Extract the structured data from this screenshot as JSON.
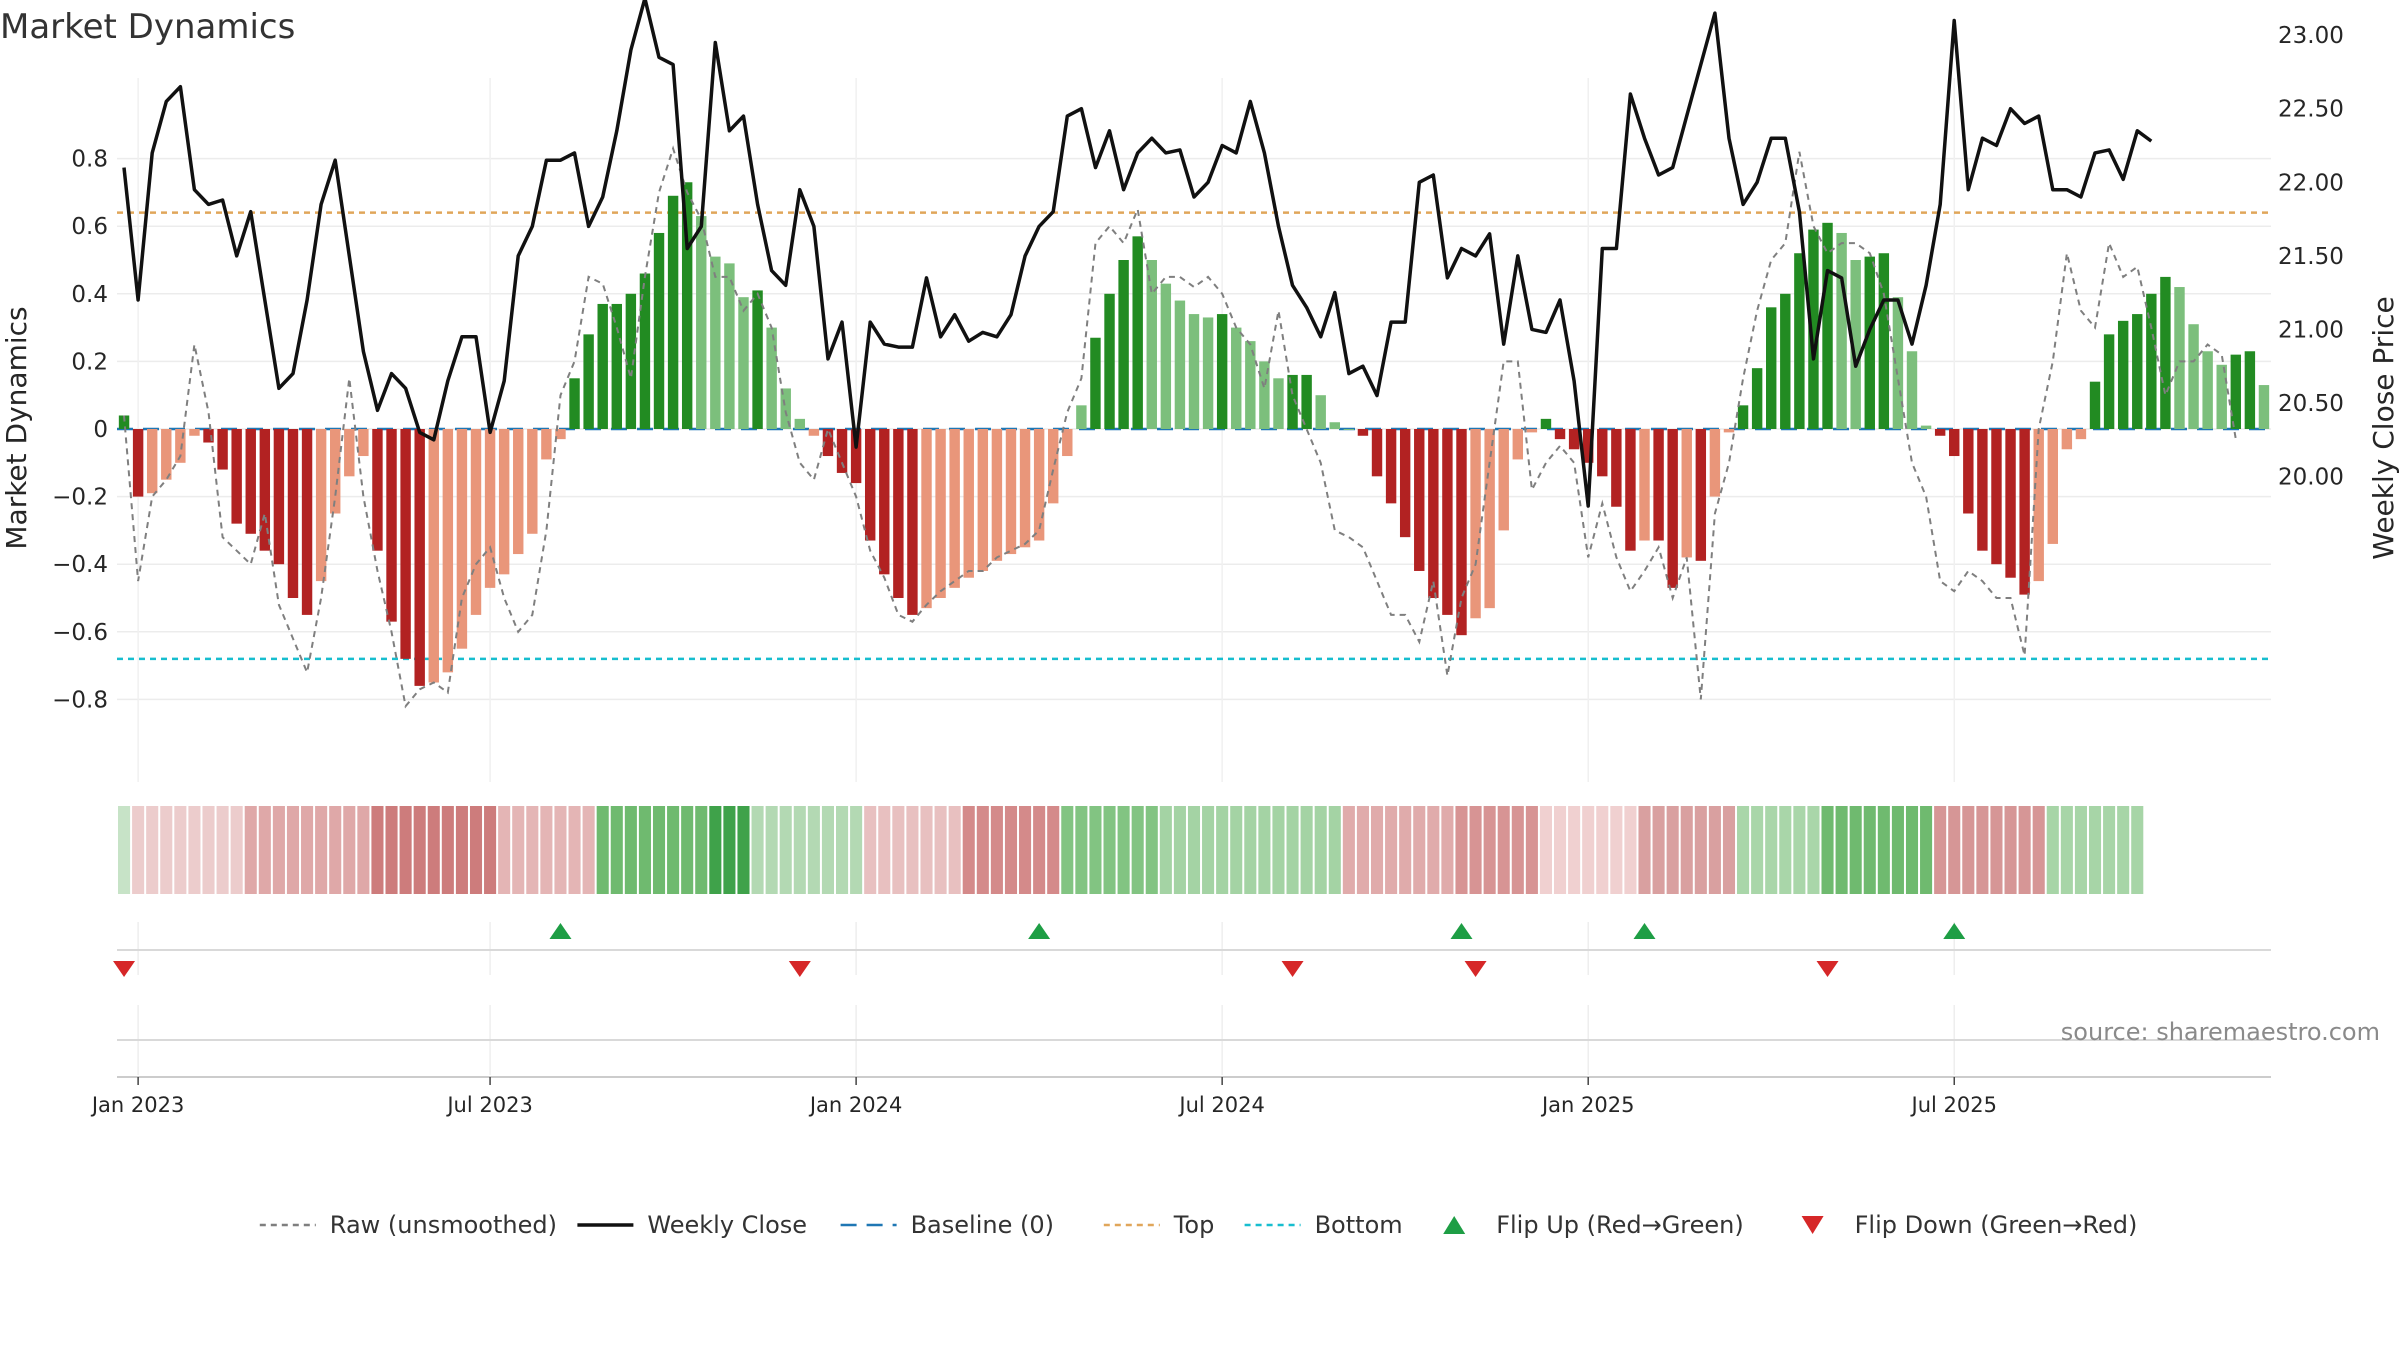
{
  "chart_data": {
    "type": "bar",
    "title": "Market Dynamics",
    "ylabel_left": "Market Dynamics",
    "ylabel_right": "Weekly Close Price",
    "source": "source: sharemaestro.com",
    "ylim_left": [
      -0.82,
      0.82
    ],
    "ylim_right": [
      19.75,
      23.3
    ],
    "yticks_left": [
      {
        "value": 0.8,
        "label": "0.8"
      },
      {
        "value": 0.6,
        "label": "0.6"
      },
      {
        "value": 0.4,
        "label": "0.4"
      },
      {
        "value": 0.2,
        "label": "0.2"
      },
      {
        "value": 0,
        "label": "0"
      },
      {
        "value": -0.2,
        "label": "−0.2"
      },
      {
        "value": -0.4,
        "label": "−0.4"
      },
      {
        "value": -0.6,
        "label": "−0.6"
      },
      {
        "value": -0.8,
        "label": "−0.8"
      }
    ],
    "yticks_right": [
      {
        "value": 23.0,
        "label": "23.00"
      },
      {
        "value": 22.5,
        "label": "22.50"
      },
      {
        "value": 22.0,
        "label": "22.00"
      },
      {
        "value": 21.5,
        "label": "21.50"
      },
      {
        "value": 21.0,
        "label": "21.00"
      },
      {
        "value": 20.5,
        "label": "20.50"
      },
      {
        "value": 20.0,
        "label": "20.00"
      }
    ],
    "xticks": [
      {
        "week": 1,
        "label": "Jan 2023"
      },
      {
        "week": 26,
        "label": "Jul 2023"
      },
      {
        "week": 52,
        "label": "Jan 2024"
      },
      {
        "week": 78,
        "label": "Jul 2024"
      },
      {
        "week": 104,
        "label": "Jan 2025"
      },
      {
        "week": 130,
        "label": "Jul 2025"
      }
    ],
    "top_line": 0.64,
    "bottom_line": -0.68,
    "smoothed": [
      0.04,
      -0.2,
      -0.19,
      -0.15,
      -0.1,
      -0.02,
      -0.04,
      -0.12,
      -0.28,
      -0.31,
      -0.36,
      -0.4,
      -0.5,
      -0.55,
      -0.45,
      -0.25,
      -0.14,
      -0.08,
      -0.36,
      -0.57,
      -0.68,
      -0.76,
      -0.75,
      -0.72,
      -0.65,
      -0.55,
      -0.47,
      -0.43,
      -0.37,
      -0.31,
      -0.09,
      -0.03,
      0.15,
      0.28,
      0.37,
      0.37,
      0.4,
      0.46,
      0.58,
      0.69,
      0.73,
      0.63,
      0.51,
      0.49,
      0.39,
      0.41,
      0.3,
      0.12,
      0.03,
      -0.02,
      -0.08,
      -0.13,
      -0.16,
      -0.33,
      -0.43,
      -0.5,
      -0.55,
      -0.53,
      -0.5,
      -0.47,
      -0.44,
      -0.42,
      -0.39,
      -0.37,
      -0.35,
      -0.33,
      -0.22,
      -0.08,
      0.07,
      0.27,
      0.4,
      0.5,
      0.57,
      0.5,
      0.43,
      0.38,
      0.34,
      0.33,
      0.34,
      0.3,
      0.26,
      0.2,
      0.15,
      0.16,
      0.16,
      0.1,
      0.02,
      0.0,
      -0.02,
      -0.14,
      -0.22,
      -0.32,
      -0.42,
      -0.5,
      -0.55,
      -0.61,
      -0.56,
      -0.53,
      -0.3,
      -0.09,
      -0.01,
      0.03,
      -0.03,
      -0.06,
      -0.1,
      -0.14,
      -0.23,
      -0.36,
      -0.33,
      -0.33,
      -0.47,
      -0.38,
      -0.39,
      -0.2,
      -0.01,
      0.07,
      0.18,
      0.36,
      0.4,
      0.52,
      0.59,
      0.61,
      0.58,
      0.5,
      0.51,
      0.52,
      0.39,
      0.23,
      0.01,
      -0.02,
      -0.08,
      -0.25,
      -0.36,
      -0.4,
      -0.44,
      -0.49,
      -0.45,
      -0.34,
      -0.06,
      -0.03,
      0.14,
      0.28,
      0.32,
      0.34,
      0.4,
      0.45,
      0.42,
      0.31,
      0.23,
      0.19,
      0.22,
      0.23,
      0.13
    ],
    "raw": [
      0.04,
      -0.45,
      -0.2,
      -0.15,
      -0.08,
      0.25,
      0.05,
      -0.32,
      -0.36,
      -0.4,
      -0.25,
      -0.52,
      -0.62,
      -0.72,
      -0.5,
      -0.2,
      0.15,
      -0.2,
      -0.42,
      -0.6,
      -0.82,
      -0.77,
      -0.75,
      -0.78,
      -0.5,
      -0.4,
      -0.35,
      -0.5,
      -0.6,
      -0.55,
      -0.3,
      0.1,
      0.2,
      0.45,
      0.43,
      0.3,
      0.15,
      0.45,
      0.7,
      0.83,
      0.7,
      0.62,
      0.45,
      0.45,
      0.35,
      0.4,
      0.3,
      0.05,
      -0.1,
      -0.15,
      0.0,
      -0.1,
      -0.2,
      -0.36,
      -0.44,
      -0.55,
      -0.57,
      -0.52,
      -0.48,
      -0.45,
      -0.42,
      -0.42,
      -0.38,
      -0.36,
      -0.34,
      -0.3,
      -0.12,
      0.05,
      0.15,
      0.55,
      0.6,
      0.55,
      0.65,
      0.4,
      0.45,
      0.45,
      0.42,
      0.45,
      0.4,
      0.3,
      0.25,
      0.12,
      0.35,
      0.1,
      0.0,
      -0.1,
      -0.3,
      -0.32,
      -0.35,
      -0.45,
      -0.55,
      -0.55,
      -0.63,
      -0.45,
      -0.73,
      -0.5,
      -0.4,
      -0.1,
      0.2,
      0.2,
      -0.18,
      -0.1,
      -0.05,
      -0.1,
      -0.38,
      -0.22,
      -0.38,
      -0.48,
      -0.42,
      -0.35,
      -0.5,
      -0.38,
      -0.8,
      -0.25,
      -0.1,
      0.15,
      0.35,
      0.5,
      0.55,
      0.82,
      0.6,
      0.52,
      0.55,
      0.55,
      0.52,
      0.4,
      0.15,
      -0.1,
      -0.2,
      -0.45,
      -0.48,
      -0.42,
      -0.45,
      -0.5,
      -0.5,
      -0.67,
      0.0,
      0.2,
      0.52,
      0.35,
      0.3,
      0.55,
      0.45,
      0.48,
      0.3,
      0.1,
      0.2,
      0.2,
      0.25,
      0.22,
      -0.03
    ],
    "price": [
      22.1,
      21.2,
      22.2,
      22.55,
      22.65,
      21.95,
      21.85,
      21.88,
      21.5,
      21.8,
      21.2,
      20.6,
      20.7,
      21.2,
      21.85,
      22.15,
      21.5,
      20.85,
      20.45,
      20.7,
      20.6,
      20.3,
      20.25,
      20.65,
      20.95,
      20.95,
      20.3,
      20.65,
      21.5,
      21.7,
      22.15,
      22.15,
      22.2,
      21.7,
      21.9,
      22.35,
      22.9,
      23.25,
      22.85,
      22.8,
      21.55,
      21.7,
      22.95,
      22.35,
      22.45,
      21.85,
      21.4,
      21.3,
      21.95,
      21.7,
      20.8,
      21.05,
      20.2,
      21.05,
      20.9,
      20.88,
      20.88,
      21.35,
      20.95,
      21.1,
      20.92,
      20.98,
      20.95,
      21.1,
      21.5,
      21.7,
      21.8,
      22.45,
      22.5,
      22.1,
      22.35,
      21.95,
      22.2,
      22.3,
      22.2,
      22.22,
      21.9,
      22.0,
      22.25,
      22.2,
      22.55,
      22.2,
      21.7,
      21.3,
      21.15,
      20.95,
      21.25,
      20.7,
      20.75,
      20.55,
      21.05,
      21.05,
      22.0,
      22.05,
      21.35,
      21.55,
      21.5,
      21.65,
      20.9,
      21.5,
      21.0,
      20.98,
      21.2,
      20.65,
      19.8,
      21.55,
      21.55,
      22.6,
      22.3,
      22.05,
      22.1,
      22.45,
      22.8,
      23.15,
      22.3,
      21.85,
      22.0,
      22.3,
      22.3,
      21.8,
      20.8,
      21.4,
      21.35,
      20.75,
      21.0,
      21.2,
      21.2,
      20.9,
      21.3,
      21.85,
      23.1,
      21.95,
      22.3,
      22.25,
      22.5,
      22.4,
      22.45,
      21.95,
      21.95,
      21.9,
      22.2,
      22.22,
      22.02,
      22.35,
      22.28
    ],
    "regime_bands": [
      {
        "from": 0,
        "to": 1,
        "color": "#c7e3c7"
      },
      {
        "from": 1,
        "to": 9,
        "color": "#eccccc"
      },
      {
        "from": 9,
        "to": 18,
        "color": "#dfa8a8"
      },
      {
        "from": 18,
        "to": 27,
        "color": "#cd7c7c"
      },
      {
        "from": 27,
        "to": 34,
        "color": "#e4b5b5"
      },
      {
        "from": 34,
        "to": 42,
        "color": "#6fba6f"
      },
      {
        "from": 42,
        "to": 45,
        "color": "#3fa24a"
      },
      {
        "from": 45,
        "to": 53,
        "color": "#b3d9b3"
      },
      {
        "from": 53,
        "to": 60,
        "color": "#e8c0c0"
      },
      {
        "from": 60,
        "to": 67,
        "color": "#d48a8a"
      },
      {
        "from": 67,
        "to": 74,
        "color": "#82c482"
      },
      {
        "from": 74,
        "to": 87,
        "color": "#a4d3a4"
      },
      {
        "from": 87,
        "to": 95,
        "color": "#e0abab"
      },
      {
        "from": 95,
        "to": 101,
        "color": "#d79494"
      },
      {
        "from": 101,
        "to": 108,
        "color": "#f0d0d0"
      },
      {
        "from": 108,
        "to": 115,
        "color": "#d9a0a0"
      },
      {
        "from": 115,
        "to": 121,
        "color": "#a9d6a9"
      },
      {
        "from": 121,
        "to": 129,
        "color": "#6fba6f"
      },
      {
        "from": 129,
        "to": 137,
        "color": "#d69696"
      },
      {
        "from": 137,
        "to": 144,
        "color": "#a7d5a7"
      }
    ],
    "flips_up": [
      31,
      65,
      95,
      108,
      130
    ],
    "flips_down": [
      0,
      48,
      83,
      96,
      121
    ],
    "colors": {
      "pos_strong": "#228b22",
      "pos_weak": "#7cbf7c",
      "neg_strong": "#b22222",
      "neg_weak": "#e9967a",
      "raw": "#7f7f7f",
      "close": "#111111",
      "baseline": "#1f77b4",
      "top": "#e0a65a",
      "bottom": "#17becf",
      "flip_up": "#1e9e45",
      "flip_down": "#d62728"
    },
    "legend": [
      {
        "key": "raw",
        "label": "Raw (unsmoothed)"
      },
      {
        "key": "close",
        "label": "Weekly Close"
      },
      {
        "key": "baseline",
        "label": "Baseline (0)"
      },
      {
        "key": "top",
        "label": "Top"
      },
      {
        "key": "bottom",
        "label": "Bottom"
      },
      {
        "key": "flip_up",
        "label": "Flip Up (Red→Green)"
      },
      {
        "key": "flip_down",
        "label": "Flip Down (Green→Red)"
      }
    ]
  }
}
